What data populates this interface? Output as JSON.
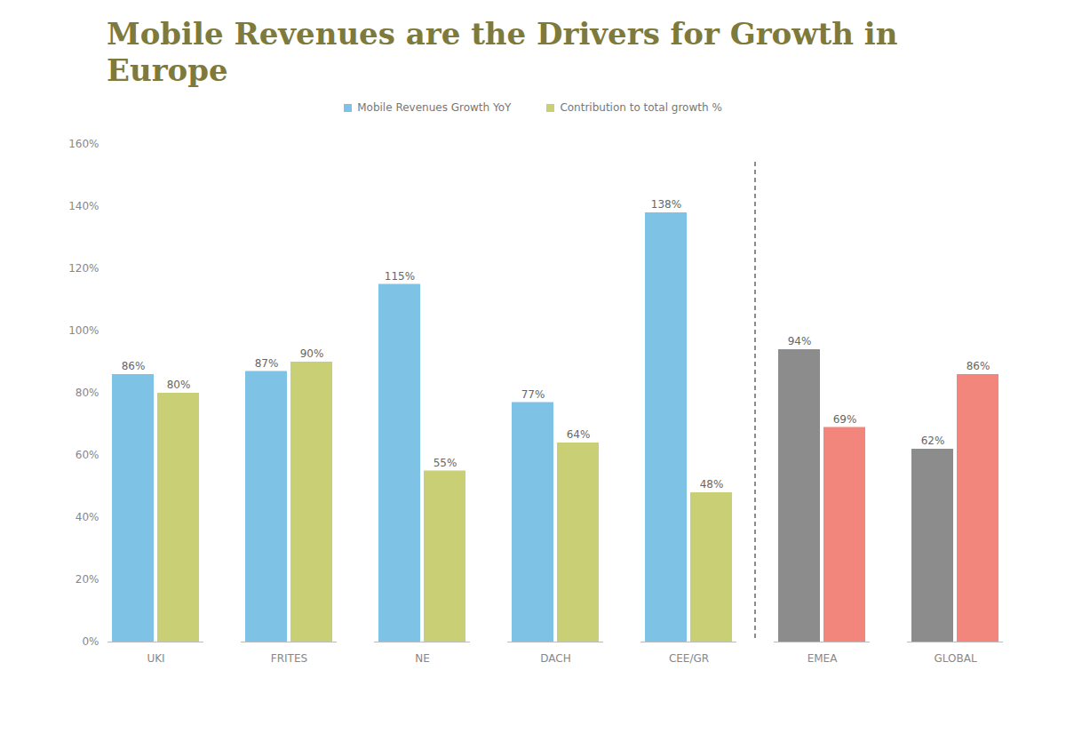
{
  "chart_data": {
    "type": "bar",
    "title": "Mobile Revenues are the Drivers for Growth in Europe",
    "categories": [
      "UKI",
      "FRITES",
      "NE",
      "DACH",
      "CEE/GR",
      "EMEA",
      "GLOBAL"
    ],
    "series": [
      {
        "name": "Mobile Revenues Growth YoY",
        "color": "#7ec2e6",
        "colors": [
          "#7ec2e6",
          "#7ec2e6",
          "#7ec2e6",
          "#7ec2e6",
          "#7ec2e6",
          "#8c8c8c",
          "#8c8c8c"
        ],
        "values": [
          86,
          87,
          115,
          77,
          138,
          94,
          62
        ],
        "value_labels": [
          "86%",
          "87%",
          "115%",
          "77%",
          "138%",
          "94%",
          "62%"
        ]
      },
      {
        "name": "Contribution to total growth %",
        "color": "#c9cf74",
        "colors": [
          "#c9cf74",
          "#c9cf74",
          "#c9cf74",
          "#c9cf74",
          "#c9cf74",
          "#f2867c",
          "#f2867c"
        ],
        "values": [
          80,
          90,
          55,
          64,
          48,
          69,
          86
        ],
        "value_labels": [
          "80%",
          "90%",
          "55%",
          "64%",
          "48%",
          "69%",
          "86%"
        ]
      }
    ],
    "ylim": [
      0,
      160
    ],
    "yticks": [
      {
        "value": 0,
        "label": "0%"
      },
      {
        "value": 20,
        "label": "20%"
      },
      {
        "value": 40,
        "label": "40%"
      },
      {
        "value": 60,
        "label": "60%"
      },
      {
        "value": 80,
        "label": "80%"
      },
      {
        "value": 100,
        "label": "100%"
      },
      {
        "value": 120,
        "label": "120%"
      },
      {
        "value": 140,
        "label": "140%"
      },
      {
        "value": 160,
        "label": "160%"
      }
    ],
    "grid": false,
    "legend": "top",
    "data_labels": true
  }
}
